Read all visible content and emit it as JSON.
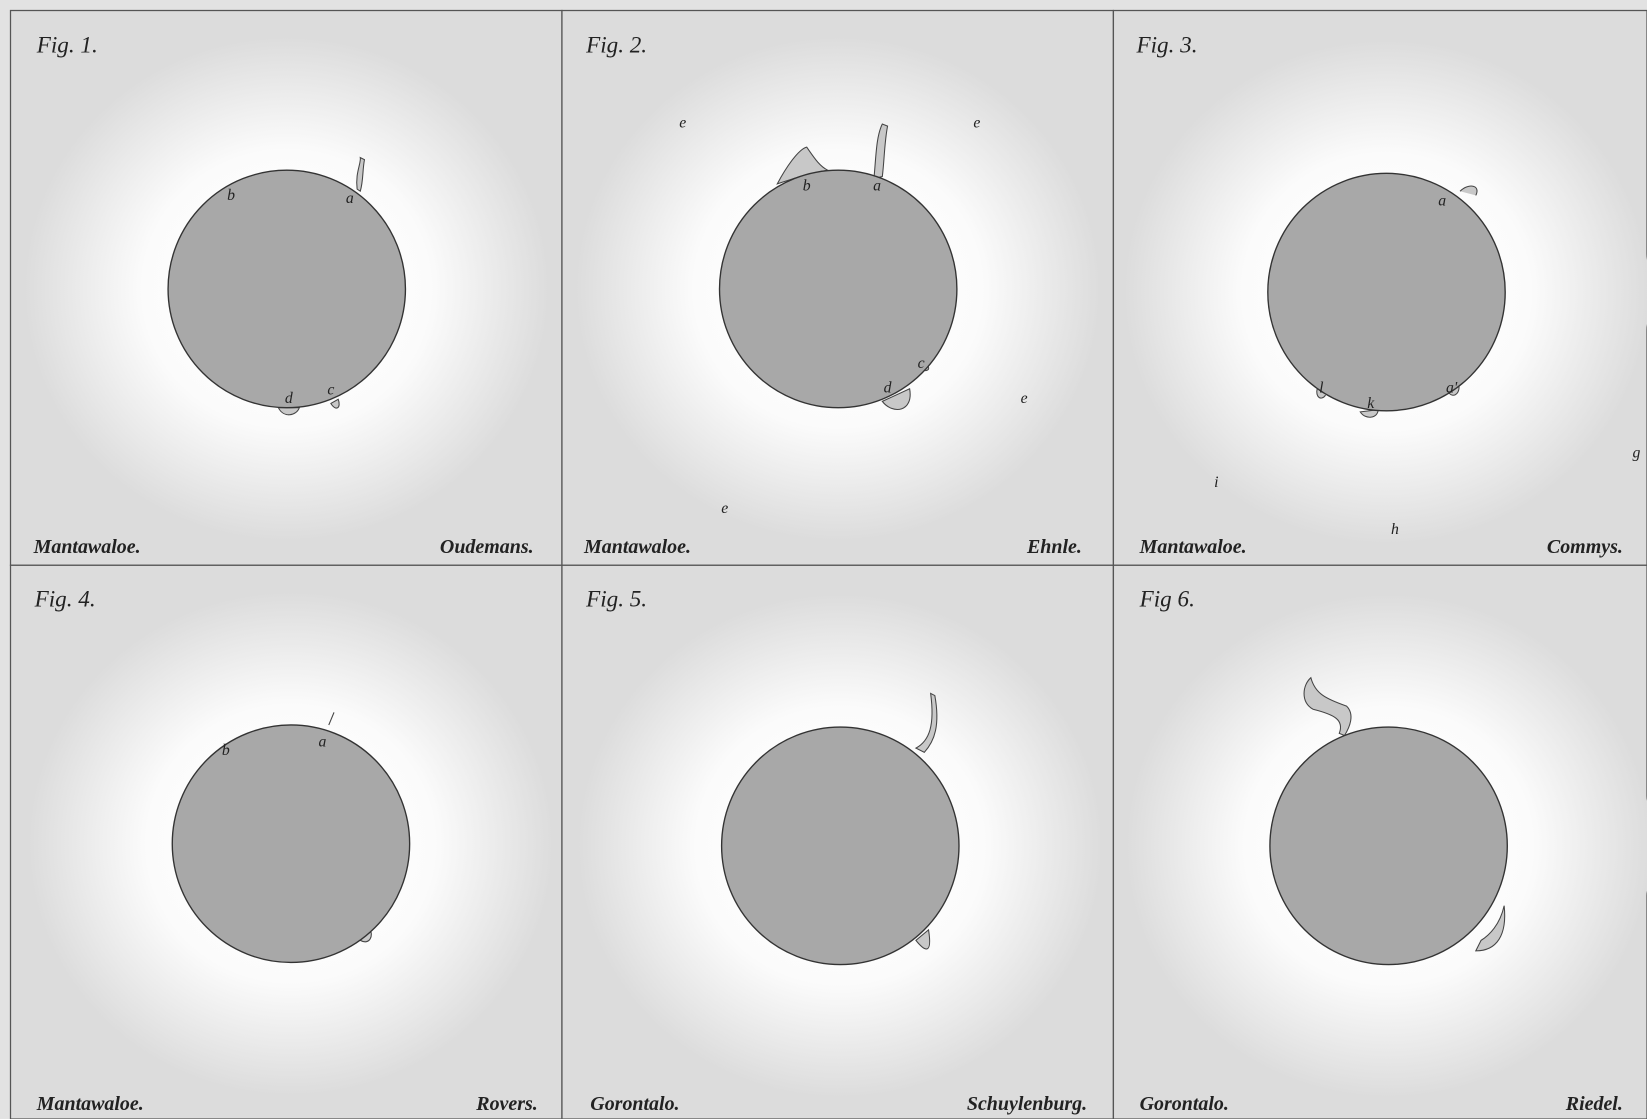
{
  "panels": [
    {
      "figure": "Fig. 1.",
      "location": "Mantawaloe.",
      "observer": "Oudemans.",
      "labels": [
        "b",
        "a",
        "d",
        "c"
      ]
    },
    {
      "figure": "Fig. 2.",
      "location": "Mantawaloe.",
      "observer": "Ehnle.",
      "labels": [
        "b",
        "a",
        "c",
        "d",
        "e",
        "e",
        "e",
        "e"
      ]
    },
    {
      "figure": "Fig. 3.",
      "location": "Mantawaloe.",
      "observer": "Commys.",
      "labels": [
        "a",
        "l",
        "k",
        "a'",
        "i",
        "h",
        "g"
      ]
    },
    {
      "figure": "Fig. 4.",
      "location": "Mantawaloe.",
      "observer": "Rovers.",
      "labels": [
        "b",
        "a"
      ]
    },
    {
      "figure": "Fig. 5.",
      "location": "Gorontalo.",
      "observer": "Schuylenburg.",
      "labels": []
    },
    {
      "figure": "Fig 6.",
      "location": "Gorontalo.",
      "observer": "Riedel.",
      "labels": []
    }
  ]
}
